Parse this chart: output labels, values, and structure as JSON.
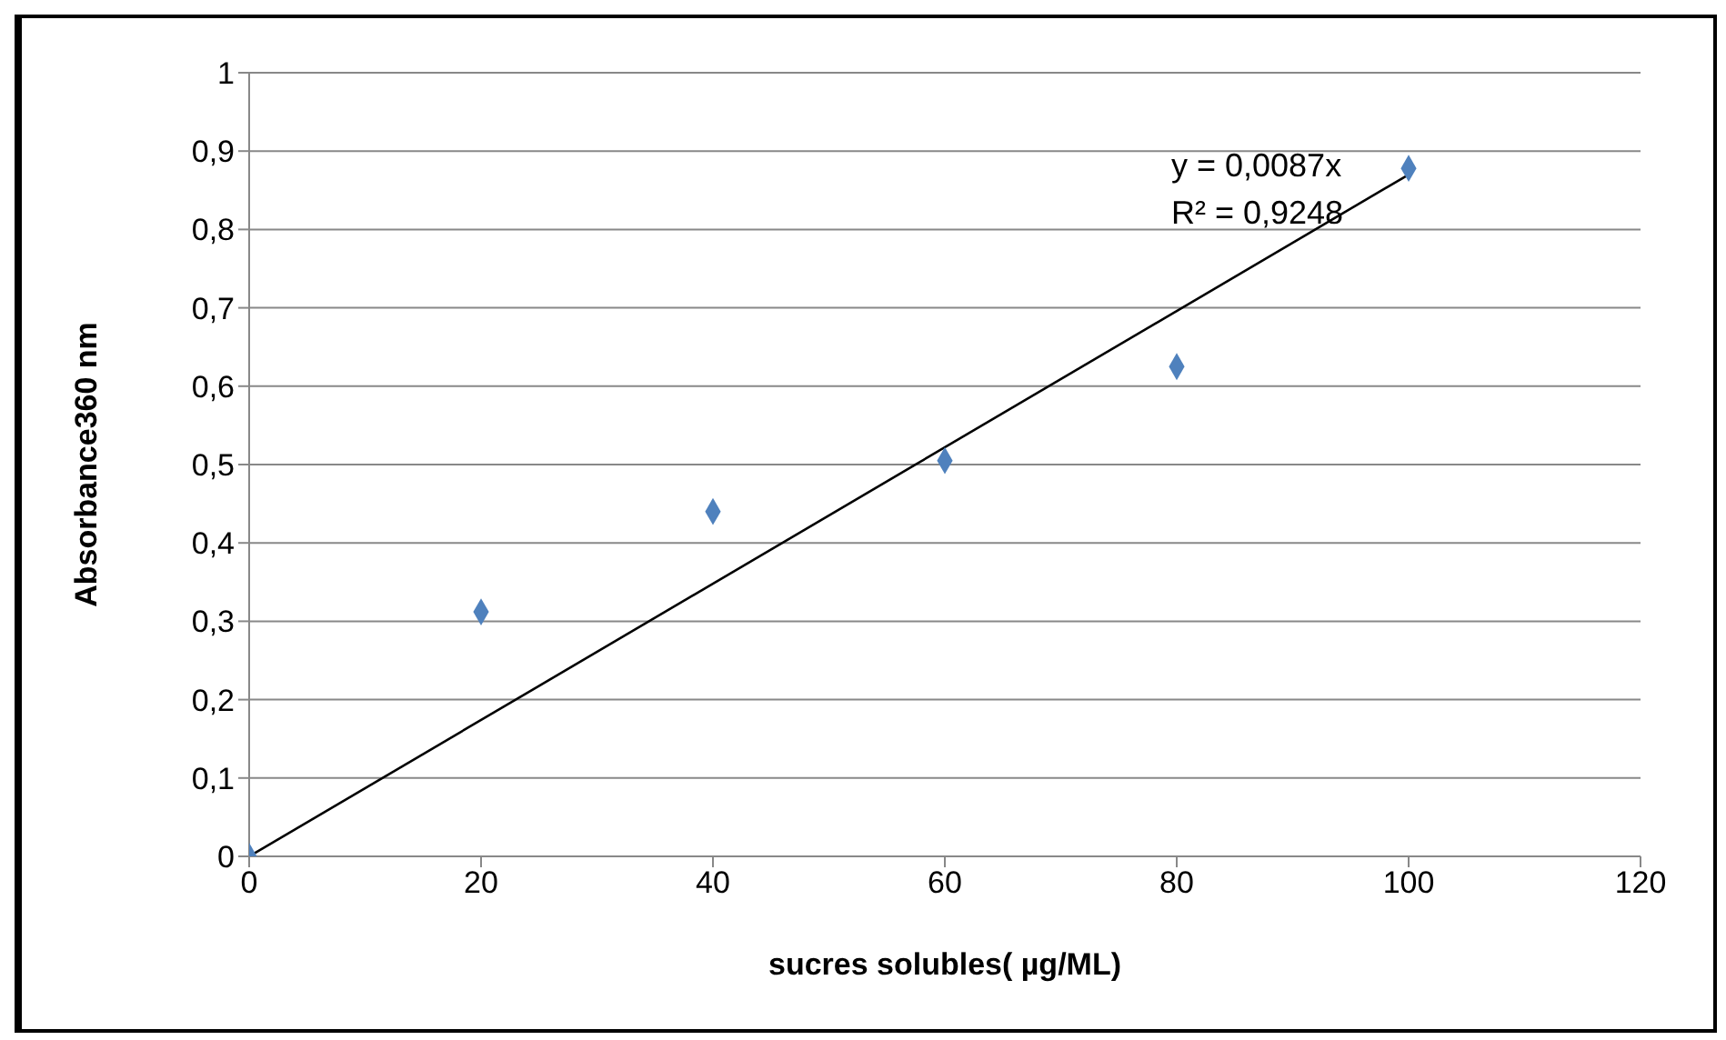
{
  "chart_data": {
    "type": "scatter",
    "xlabel": "sucres solubles( µg/ML)",
    "ylabel": "Absorbance360 nm",
    "x": [
      0,
      20,
      40,
      60,
      80,
      100
    ],
    "series": [
      {
        "color": "#4f81bd",
        "marker": "diamond",
        "values": [
          0,
          0.312,
          0.44,
          0.505,
          0.625,
          0.878
        ]
      },
      {
        "type": "line",
        "color": "#000000",
        "marker": "none",
        "x": [
          0,
          100
        ],
        "values": [
          0,
          0.87
        ]
      }
    ],
    "xlim": [
      0,
      120
    ],
    "xticks": [
      0,
      20,
      40,
      60,
      80,
      100,
      120
    ],
    "ylim": [
      0,
      1
    ],
    "yticks": [
      0,
      {
        "value": 0.1,
        "label": "0,1"
      },
      {
        "value": 0.2,
        "label": "0,2"
      },
      {
        "value": 0.3,
        "label": "0,3"
      },
      {
        "value": 0.4,
        "label": "0,4"
      },
      {
        "value": 0.5,
        "label": "0,5"
      },
      {
        "value": 0.6,
        "label": "0,6"
      },
      {
        "value": 0.7,
        "label": "0,7"
      },
      {
        "value": 0.8,
        "label": "0,8"
      },
      {
        "value": 0.9,
        "label": "0,9"
      },
      1
    ],
    "grid": "y",
    "annotations": [
      "y = 0,0087x",
      "R² = 0,9248"
    ]
  }
}
